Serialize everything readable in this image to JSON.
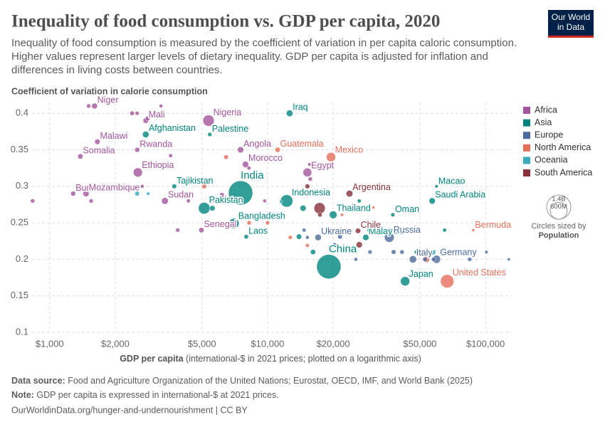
{
  "logo": [
    "Our World",
    "in Data"
  ],
  "chart_data": {
    "type": "scatter",
    "title": "Inequality of food consumption vs. GDP per capita, 2020",
    "subtitle": [
      "Inequality of food consumption is measured by the coefficient of variation in per capita caloric consumption.",
      "Higher values represent larger levels of dietary inequality. GDP per capita is adjusted for inflation and",
      "differences in living costs between countries."
    ],
    "y_label": "Coefficient of variation in calorie consumption",
    "x_label_bold": "GDP per capita",
    "x_label_rest": " (international-$ in 2021 prices; plotted on a logarithmic axis)",
    "log_x": true,
    "grid": true,
    "legend_position": "right",
    "xlim": [
      830,
      131000
    ],
    "ylim": [
      0.1,
      0.415
    ],
    "xticks": [
      {
        "value": 1000,
        "label": "$1,000"
      },
      {
        "value": 2000,
        "label": "$2,000"
      },
      {
        "value": 5000,
        "label": "$5,000"
      },
      {
        "value": 10000,
        "label": "$10,000"
      },
      {
        "value": 20000,
        "label": "$20,000"
      },
      {
        "value": 50000,
        "label": "$50,000"
      },
      {
        "value": 100000,
        "label": "$100,000"
      }
    ],
    "yticks": [
      0.1,
      0.15,
      0.2,
      0.25,
      0.3,
      0.35,
      0.4
    ],
    "series": [
      {
        "name": "Africa",
        "color": "#a2559c",
        "x": [
          1607,
          2762,
          5360,
          1656,
          1383,
          2523,
          7520,
          7920,
          2540,
          15230,
          1282,
          1468,
          3380,
          4970,
          835,
          1510,
          2390,
          2520,
          3240,
          2820,
          3590,
          1550,
          2660,
          4330,
          3870,
          5640,
          6170,
          8220,
          9700,
          15550,
          15700
        ],
        "values": [
          0.41,
          0.39,
          0.39,
          0.361,
          0.341,
          0.35,
          0.35,
          0.33,
          0.319,
          0.319,
          0.29,
          0.29,
          0.28,
          0.24,
          0.28,
          0.41,
          0.4,
          0.4,
          0.41,
          0.393,
          0.342,
          0.28,
          0.3,
          0.28,
          0.24,
          0.281,
          0.288,
          0.325,
          0.28,
          0.33,
          0.31
        ],
        "sizes": [
          25000000,
          22000000,
          220000000,
          20000000,
          17000000,
          13000000,
          34000000,
          37000000,
          120000000,
          107000000,
          13000000,
          32000000,
          45000000,
          17000000,
          6000000,
          5000000,
          8000000,
          4000000,
          2000000,
          9000000,
          3000000,
          6000000,
          2000000,
          3000000,
          5000000,
          4000000,
          12000000,
          3000000,
          2000000,
          1000000,
          6000000
        ],
        "labels": [
          "Niger",
          "Mali",
          "Nigeria",
          "Malawi",
          "Somalia",
          "Rwanda",
          "Angola",
          "Morocco",
          "Ethiopia",
          "Egypt",
          "Burundi",
          "Mozambique",
          "Sudan",
          "Senegal",
          null,
          null,
          null,
          null,
          null,
          null,
          null,
          null,
          null,
          null,
          null,
          null,
          null,
          null,
          null,
          null,
          null
        ]
      },
      {
        "name": "Asia",
        "color": "#00847e",
        "x": [
          2760,
          5430,
          12620,
          3730,
          7520,
          5120,
          7010,
          7980,
          12240,
          20000,
          19100,
          28240,
          37580,
          59590,
          56930,
          42760,
          5580,
          6090,
          14550,
          11790,
          26350,
          16160,
          29290,
          48130,
          64900,
          13940
        ],
        "values": [
          0.371,
          0.371,
          0.4,
          0.3,
          0.291,
          0.27,
          0.249,
          0.231,
          0.28,
          0.261,
          0.19,
          0.23,
          0.261,
          0.3,
          0.28,
          0.17,
          0.27,
          0.28,
          0.27,
          0.26,
          0.28,
          0.21,
          0.24,
          0.21,
          0.24,
          0.231
        ],
        "sizes": [
          40000000,
          5000000,
          42000000,
          10000000,
          1400000000,
          235000000,
          170000000,
          7000000,
          275000000,
          70000000,
          1410000000,
          33000000,
          4500000,
          700000,
          36000000,
          125000000,
          20000000,
          5000000,
          30000000,
          10000000,
          3000000,
          15000000,
          4000000,
          5000000,
          3000000,
          19000000
        ],
        "labels": [
          "Afghanistan",
          "Palestine",
          "Iraq",
          "Tajikistan",
          "India",
          "Pakistan",
          "Bangladesh",
          "Laos",
          "Indonesia",
          "Thailand",
          "China",
          "Malaysia",
          "Oman",
          "Macao",
          "Saudi Arabia",
          "Japan",
          null,
          null,
          null,
          null,
          null,
          null,
          null,
          null,
          null,
          null
        ]
      },
      {
        "name": "Europe",
        "color": "#4c6a9c",
        "x": [
          17060,
          36200,
          46460,
          59590,
          14710,
          15230,
          21500,
          29520,
          37880,
          41380,
          52800,
          57780,
          64400,
          72800,
          84600,
          101000,
          128000,
          25400,
          20300,
          36500
        ],
        "values": [
          0.23,
          0.23,
          0.2,
          0.2,
          0.24,
          0.23,
          0.231,
          0.21,
          0.21,
          0.21,
          0.2,
          0.2,
          0.21,
          0.21,
          0.2,
          0.21,
          0.2,
          0.2,
          0.22,
          0.24
        ],
        "sizes": [
          38000000,
          144000000,
          59000000,
          83000000,
          3000000,
          2000000,
          10000000,
          5000000,
          10000000,
          6000000,
          9000000,
          5000000,
          17000000,
          9000000,
          5000000,
          600000,
          40000,
          2000000,
          4000000,
          1300000
        ],
        "labels": [
          "Ukraine",
          "Russia",
          "Italy",
          "Germany",
          null,
          null,
          null,
          null,
          null,
          null,
          null,
          null,
          null,
          null,
          null,
          null,
          null,
          null,
          null,
          null
        ]
      },
      {
        "name": "North America",
        "color": "#e56e5a",
        "x": [
          11120,
          19540,
          87900,
          66700,
          5120,
          6450,
          8230,
          10000,
          12710,
          15230,
          21960,
          30600,
          53600
        ],
        "values": [
          0.35,
          0.34,
          0.24,
          0.17,
          0.3,
          0.34,
          0.25,
          0.25,
          0.23,
          0.219,
          0.261,
          0.271,
          0.2
        ],
        "sizes": [
          17000000,
          127000000,
          60000,
          335000000,
          11000000,
          10000000,
          6000000,
          5000000,
          4000000,
          3000000,
          300000,
          100000,
          38000000
        ],
        "labels": [
          "Guatemala",
          "Mexico",
          "Bermuda",
          "United States",
          null,
          null,
          null,
          null,
          null,
          null,
          null,
          null,
          null
        ]
      },
      {
        "name": "Oceania",
        "color": "#38aaba",
        "x": [
          2520,
          2830,
          57350,
          11540
        ],
        "values": [
          0.29,
          0.29,
          0.21,
          0.279
        ],
        "sizes": [
          10000000,
          700000,
          26000000,
          1000000
        ],
        "labels": [
          null,
          null,
          null,
          null
        ]
      },
      {
        "name": "South America",
        "color": "#883039",
        "x": [
          23760,
          26000,
          17330,
          15230,
          17390,
          26350,
          23580
        ],
        "values": [
          0.29,
          0.239,
          0.27,
          0.3,
          0.261,
          0.22,
          0.24
        ],
        "sizes": [
          46000000,
          19000000,
          215000000,
          11000000,
          7000000,
          34000000,
          3500000
        ],
        "labels": [
          "Argentina",
          "Chile",
          null,
          null,
          null,
          null,
          null
        ]
      }
    ],
    "size_legend": {
      "title": "Circles sized by",
      "variable": "Population",
      "values": [
        {
          "value": 1400000000,
          "label": "1.4B"
        },
        {
          "value": 600000000,
          "label": "600M"
        }
      ]
    }
  },
  "footer": {
    "source_label": "Data source:",
    "source_text": " Food and Agriculture Organization of the United Nations; Eurostat, OECD, IMF, and World Bank (2025)",
    "note_label": "Note:",
    "note_text": " GDP per capita is expressed in international-$ at 2021 prices.",
    "url": "OurWorldinData.org/hunger-and-undernourishment | CC BY"
  }
}
